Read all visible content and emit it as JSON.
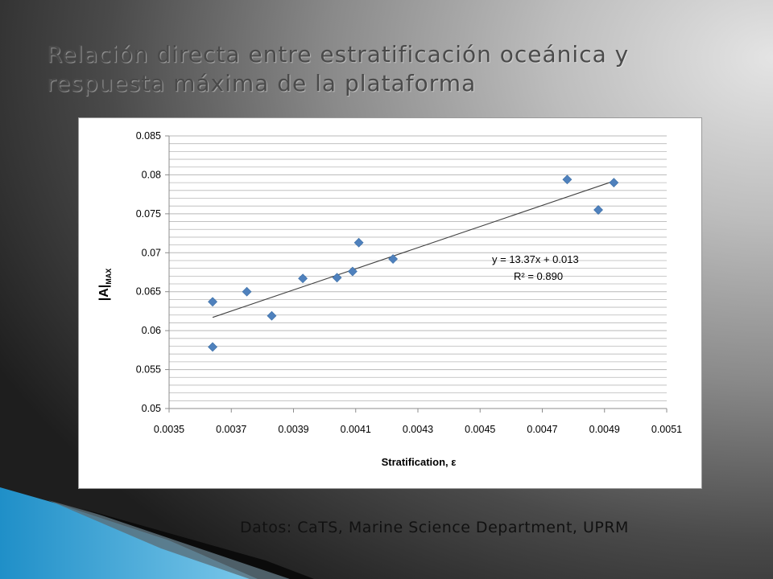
{
  "slide": {
    "title_line1": "Relación directa entre estratificación oceánica y",
    "title_line2": "respuesta máxima de la plataforma",
    "source": "Datos: CaTS, Marine Science Department, UPRM"
  },
  "colors": {
    "marker": "#4f81bd",
    "trendline": "#404040",
    "grid": "#b8b8b8"
  },
  "chart_data": {
    "type": "scatter",
    "xlabel": "Stratification, ε",
    "ylabel_main": "|A|",
    "ylabel_sub": "MAX",
    "xlim": [
      0.0035,
      0.0051
    ],
    "ylim": [
      0.05,
      0.085
    ],
    "x_ticks": [
      "0.0035",
      "0.0037",
      "0.0039",
      "0.0041",
      "0.0043",
      "0.0045",
      "0.0047",
      "0.0049",
      "0.0051"
    ],
    "y_ticks": [
      "0.085",
      "0.08",
      "0.075",
      "0.07",
      "0.065",
      "0.06",
      "0.055",
      "0.05"
    ],
    "grid": true,
    "points": [
      {
        "x": 0.00364,
        "y": 0.0637
      },
      {
        "x": 0.00364,
        "y": 0.0579
      },
      {
        "x": 0.00375,
        "y": 0.065
      },
      {
        "x": 0.00383,
        "y": 0.0619
      },
      {
        "x": 0.00393,
        "y": 0.0667
      },
      {
        "x": 0.00404,
        "y": 0.0668
      },
      {
        "x": 0.00409,
        "y": 0.0676
      },
      {
        "x": 0.00411,
        "y": 0.0713
      },
      {
        "x": 0.00422,
        "y": 0.0692
      },
      {
        "x": 0.00478,
        "y": 0.0794
      },
      {
        "x": 0.00488,
        "y": 0.0755
      },
      {
        "x": 0.00493,
        "y": 0.079
      }
    ],
    "trendline": {
      "x": [
        0.00364,
        0.00493
      ],
      "y": [
        0.0617,
        0.0792
      ],
      "equation": "y = 13.37x + 0.013",
      "r2": "R² = 0.890"
    }
  }
}
